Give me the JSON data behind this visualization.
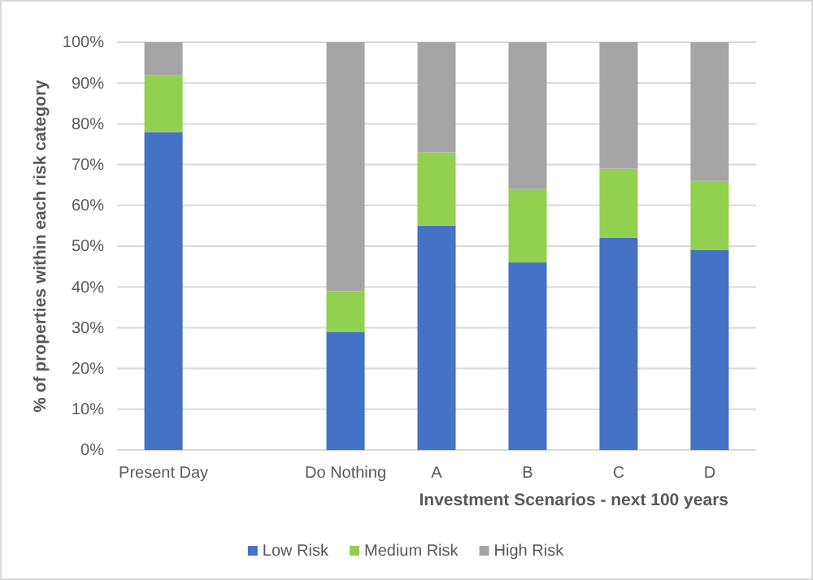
{
  "chart_data": {
    "type": "bar",
    "stacked": true,
    "xlabel": "Investment Scenarios - next 100 years",
    "ylabel": "% of properties within each risk category",
    "categories": [
      "Present Day",
      null,
      "Do Nothing",
      "A",
      "B",
      "C",
      "D"
    ],
    "series": [
      {
        "name": "Low Risk",
        "color": "#4472c4",
        "values": [
          78,
          null,
          29,
          55,
          46,
          52,
          49
        ]
      },
      {
        "name": "Medium Risk",
        "color": "#92d050",
        "values": [
          14,
          null,
          10,
          18,
          18,
          17,
          17
        ]
      },
      {
        "name": "High Risk",
        "color": "#a5a5a5",
        "values": [
          8,
          null,
          61,
          27,
          36,
          31,
          34
        ]
      }
    ],
    "ylim": [
      0,
      100
    ],
    "yticks": [
      {
        "value": 0,
        "label": "0%"
      },
      {
        "value": 10,
        "label": "10%"
      },
      {
        "value": 20,
        "label": "20%"
      },
      {
        "value": 30,
        "label": "30%"
      },
      {
        "value": 40,
        "label": "40%"
      },
      {
        "value": 50,
        "label": "50%"
      },
      {
        "value": 60,
        "label": "60%"
      },
      {
        "value": 70,
        "label": "70%"
      },
      {
        "value": 80,
        "label": "80%"
      },
      {
        "value": 90,
        "label": "90%"
      },
      {
        "value": 100,
        "label": "100%"
      }
    ],
    "grid": "y",
    "legend": "bottom"
  }
}
